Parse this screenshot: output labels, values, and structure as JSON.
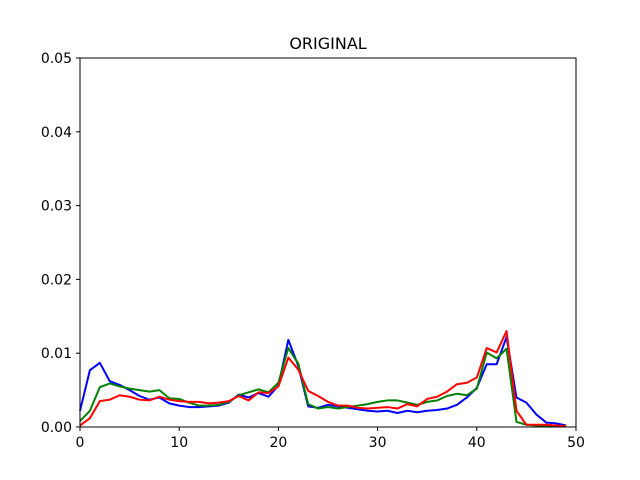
{
  "chart_data": {
    "type": "line",
    "title": "ORIGINAL",
    "xlabel": "",
    "ylabel": "",
    "xlim": [
      0,
      50
    ],
    "ylim": [
      0,
      0.05
    ],
    "grid": false,
    "x_ticks": [
      0,
      10,
      20,
      30,
      40,
      50
    ],
    "x_tick_labels": [
      "0",
      "10",
      "20",
      "30",
      "40",
      "50"
    ],
    "y_ticks": [
      0.0,
      0.01,
      0.02,
      0.03,
      0.04,
      0.05
    ],
    "y_tick_labels": [
      "0.00",
      "0.01",
      "0.02",
      "0.03",
      "0.04",
      "0.05"
    ],
    "x": [
      0,
      1,
      2,
      3,
      4,
      5,
      6,
      7,
      8,
      9,
      10,
      11,
      12,
      13,
      14,
      15,
      16,
      17,
      18,
      19,
      20,
      21,
      22,
      23,
      24,
      25,
      26,
      27,
      28,
      29,
      30,
      31,
      32,
      33,
      34,
      35,
      36,
      37,
      38,
      39,
      40,
      41,
      42,
      43,
      44,
      45,
      46,
      47,
      48,
      49
    ],
    "series": [
      {
        "color": "#0000ff",
        "values": [
          0.0022,
          0.0077,
          0.0087,
          0.0062,
          0.0057,
          0.005,
          0.0042,
          0.0037,
          0.004,
          0.0032,
          0.0029,
          0.0027,
          0.0027,
          0.0028,
          0.0029,
          0.0033,
          0.0044,
          0.004,
          0.0046,
          0.0041,
          0.0056,
          0.0118,
          0.0083,
          0.0028,
          0.0026,
          0.003,
          0.0028,
          0.0026,
          0.0024,
          0.0022,
          0.0021,
          0.0022,
          0.0019,
          0.0022,
          0.002,
          0.0022,
          0.0023,
          0.0025,
          0.003,
          0.004,
          0.0053,
          0.0085,
          0.0085,
          0.0122,
          0.004,
          0.0033,
          0.0017,
          0.0006,
          0.0005,
          0.0002
        ]
      },
      {
        "color": "#008000",
        "values": [
          0.0008,
          0.0022,
          0.0054,
          0.0059,
          0.0055,
          0.0052,
          0.005,
          0.0048,
          0.005,
          0.0039,
          0.0038,
          0.0033,
          0.0029,
          0.0029,
          0.003,
          0.0034,
          0.0043,
          0.0047,
          0.0051,
          0.0047,
          0.006,
          0.0107,
          0.0086,
          0.0031,
          0.0025,
          0.0027,
          0.0025,
          0.0027,
          0.0029,
          0.0031,
          0.0034,
          0.0036,
          0.0036,
          0.0033,
          0.003,
          0.0034,
          0.0036,
          0.0042,
          0.0045,
          0.0043,
          0.0052,
          0.0101,
          0.0093,
          0.0106,
          0.0007,
          0.0003,
          0.0002,
          0.0002,
          0.0002,
          0.0001
        ]
      },
      {
        "color": "#ff0000",
        "values": [
          0.0002,
          0.0012,
          0.0035,
          0.0037,
          0.0043,
          0.0041,
          0.0037,
          0.0036,
          0.0041,
          0.0037,
          0.0035,
          0.0034,
          0.0034,
          0.0032,
          0.0033,
          0.0035,
          0.0042,
          0.0036,
          0.0047,
          0.0046,
          0.0055,
          0.0094,
          0.0078,
          0.0049,
          0.0042,
          0.0034,
          0.0029,
          0.0029,
          0.0026,
          0.0025,
          0.0026,
          0.0027,
          0.0025,
          0.0031,
          0.0028,
          0.0038,
          0.0041,
          0.0048,
          0.0058,
          0.006,
          0.0067,
          0.0107,
          0.0101,
          0.013,
          0.0022,
          0.0003,
          0.0003,
          0.0003,
          0.0002,
          0.0001
        ]
      }
    ]
  }
}
